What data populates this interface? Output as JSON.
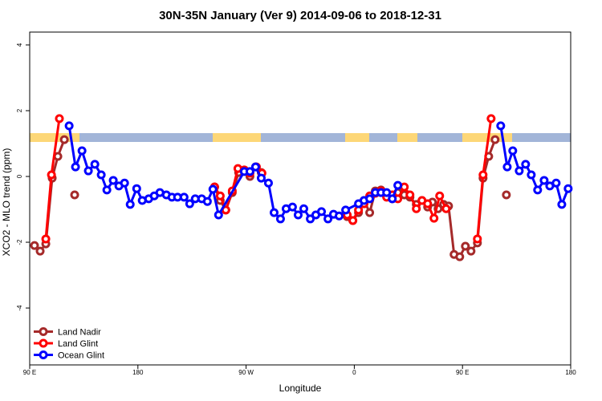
{
  "chart_data": {
    "type": "line",
    "title": "30N-35N January (Ver 9)   2014-09-06 to 2018-12-31",
    "x_label": "Longitude",
    "y_label": "XCO2 - MLO trend (ppm)",
    "xlim": [
      90,
      540
    ],
    "ylim": [
      -5.73,
      4.39
    ],
    "xticks": [
      {
        "value": 90,
        "label": "90 E"
      },
      {
        "value": 180,
        "label": "180"
      },
      {
        "value": 270,
        "label": "90 W"
      },
      {
        "value": 360,
        "label": "0"
      },
      {
        "value": 450,
        "label": "90 E"
      },
      {
        "value": 540,
        "label": "180"
      }
    ],
    "yticks": [
      -4,
      -2,
      0,
      2,
      4
    ],
    "legend": "lower left",
    "series": [
      {
        "name": "Land Nadir",
        "color": "#a52a2a",
        "x": [
          94.0,
          98.7,
          103.4,
          108.7,
          113.4,
          118.8,
          null,
          127.4,
          null,
          243.8,
          248.5,
          253.1,
          258.5,
          263.8,
          268.5,
          273.2,
          277.9,
          282.6,
          null,
          354.1,
          358.8,
          363.5,
          368.1,
          372.8,
          377.5,
          382.2,
          386.9,
          391.6,
          396.2,
          401.6,
          406.3,
          411.6,
          416.3,
          421.0,
          425.0,
          429.7,
          434.3,
          438.4,
          443.0,
          447.7,
          452.4,
          457.1,
          462.4,
          467.1,
          471.8,
          477.1,
          null,
          486.5
        ],
        "values": [
          -2.1,
          -2.27,
          -2.05,
          -0.05,
          0.61,
          1.12,
          null,
          -0.56,
          null,
          -0.32,
          -0.73,
          -1.02,
          -0.49,
          0.12,
          0.17,
          0.0,
          0.29,
          0.12,
          null,
          -1.22,
          -1.34,
          -1.1,
          -0.73,
          -1.1,
          -0.44,
          -0.41,
          -0.61,
          -0.68,
          -0.49,
          -0.56,
          -0.63,
          -0.85,
          -0.73,
          -0.93,
          -0.78,
          -0.98,
          -0.85,
          -0.9,
          -2.37,
          -2.44,
          -2.12,
          -2.27,
          -2.02,
          -0.05,
          0.61,
          1.12,
          null,
          -0.56
        ]
      },
      {
        "name": "Land Glint",
        "color": "#ff0000",
        "x": [
          103.4,
          108.1,
          114.7,
          null,
          243.8,
          248.5,
          253.1,
          258.5,
          263.2,
          268.5,
          273.2,
          278.6,
          283.2,
          null,
          354.1,
          358.8,
          363.5,
          368.1,
          372.8,
          377.5,
          382.2,
          386.9,
          391.6,
          396.2,
          401.6,
          406.3,
          411.6,
          416.3,
          421.0,
          426.3,
          431.0,
          436.4,
          null,
          462.4,
          467.1,
          473.8
        ],
        "values": [
          -1.9,
          0.05,
          1.76,
          null,
          -0.32,
          -0.59,
          -1.02,
          -0.44,
          0.24,
          0.2,
          0.1,
          0.29,
          0.1,
          null,
          -1.17,
          -1.34,
          -1.02,
          -0.83,
          -0.59,
          -0.51,
          -0.44,
          -0.63,
          -0.56,
          -0.68,
          -0.32,
          -0.56,
          -0.98,
          -0.73,
          -0.83,
          -1.27,
          -0.59,
          -0.98,
          null,
          -1.9,
          0.05,
          1.76
        ]
      },
      {
        "name": "Ocean Glint",
        "color": "#0000ff",
        "x": [
          122.8,
          128.1,
          133.5,
          138.8,
          144.2,
          149.5,
          154.2,
          159.5,
          164.2,
          168.9,
          173.6,
          179.0,
          183.6,
          189.0,
          193.6,
          198.3,
          203.7,
          208.3,
          213.0,
          218.4,
          223.1,
          227.7,
          233.1,
          237.8,
          242.4,
          247.1,
          268.5,
          273.2,
          277.9,
          282.6,
          288.6,
          293.3,
          298.6,
          303.3,
          308.6,
          313.3,
          318.0,
          323.4,
          328.0,
          332.7,
          338.1,
          342.7,
          347.4,
          352.8,
          363.5,
          368.1,
          372.8,
          377.5,
          382.2,
          386.9,
          391.6,
          396.2,
          null,
          481.8,
          487.2,
          491.8,
          497.2,
          502.5,
          507.2,
          512.5,
          517.9,
          522.6,
          527.9,
          532.6,
          537.9
        ],
        "values": [
          1.54,
          0.29,
          0.78,
          0.17,
          0.37,
          0.05,
          -0.41,
          -0.12,
          -0.29,
          -0.2,
          -0.85,
          -0.37,
          -0.73,
          -0.68,
          -0.59,
          -0.49,
          -0.56,
          -0.63,
          -0.63,
          -0.63,
          -0.83,
          -0.68,
          -0.68,
          -0.76,
          -0.39,
          -1.17,
          0.15,
          0.15,
          0.29,
          -0.05,
          -0.2,
          -1.1,
          -1.29,
          -0.98,
          -0.93,
          -1.17,
          -0.98,
          -1.29,
          -1.17,
          -1.07,
          -1.29,
          -1.15,
          -1.2,
          -1.02,
          -0.83,
          -0.73,
          -0.68,
          -0.49,
          -0.49,
          -0.49,
          -0.68,
          -0.27,
          null,
          1.54,
          0.29,
          0.78,
          0.17,
          0.37,
          0.05,
          -0.41,
          -0.12,
          -0.29,
          -0.2,
          -0.85,
          -0.37
        ]
      }
    ]
  }
}
